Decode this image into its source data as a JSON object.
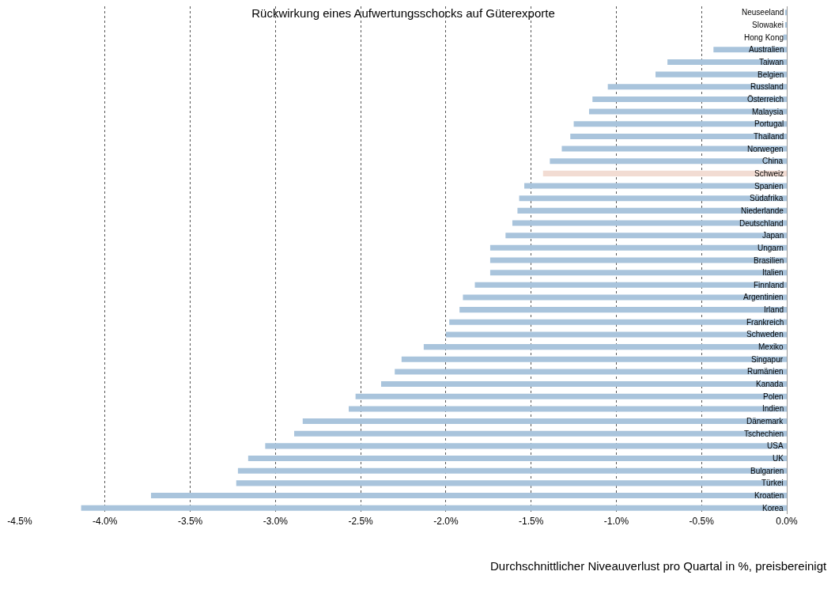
{
  "chart_data": {
    "type": "bar",
    "orientation": "horizontal",
    "title": "Rückwirkung eines Aufwertungsschocks auf Güterexporte",
    "categories": [
      "Neuseeland",
      "Slowakei",
      "Hong Kong",
      "Australien",
      "Taiwan",
      "Belgien",
      "Russland",
      "Österreich",
      "Malaysia",
      "Portugal",
      "Thailand",
      "Norwegen",
      "China",
      "Schweiz",
      "Spanien",
      "Südafrika",
      "Niederlande",
      "Deutschland",
      "Japan",
      "Ungarn",
      "Brasilien",
      "Italien",
      "Finnland",
      "Argentinien",
      "Irland",
      "Frankreich",
      "Schweden",
      "Mexiko",
      "Singapur",
      "Rumänien",
      "Kanada",
      "Polen",
      "Indien",
      "Dänemark",
      "Tschechien",
      "USA",
      "UK",
      "Bulgarien",
      "Türkei",
      "Kroatien",
      "Korea"
    ],
    "values": [
      -0.01,
      -0.01,
      -0.02,
      -0.43,
      -0.7,
      -0.77,
      -1.05,
      -1.14,
      -1.16,
      -1.25,
      -1.27,
      -1.32,
      -1.39,
      -1.43,
      -1.54,
      -1.57,
      -1.58,
      -1.61,
      -1.65,
      -1.74,
      -1.74,
      -1.74,
      -1.83,
      -1.9,
      -1.92,
      -1.98,
      -2.0,
      -2.13,
      -2.26,
      -2.3,
      -2.38,
      -2.53,
      -2.57,
      -2.84,
      -2.89,
      -3.06,
      -3.16,
      -3.22,
      -3.23,
      -3.73,
      -4.14
    ],
    "colors": [
      "#a9c4dc",
      "#a9c4dc",
      "#a9c4dc",
      "#a9c4dc",
      "#a9c4dc",
      "#a9c4dc",
      "#a9c4dc",
      "#a9c4dc",
      "#a9c4dc",
      "#a9c4dc",
      "#a9c4dc",
      "#a9c4dc",
      "#a9c4dc",
      "#f2dcd3",
      "#a9c4dc",
      "#a9c4dc",
      "#a9c4dc",
      "#a9c4dc",
      "#a9c4dc",
      "#a9c4dc",
      "#a9c4dc",
      "#a9c4dc",
      "#a9c4dc",
      "#a9c4dc",
      "#a9c4dc",
      "#a9c4dc",
      "#a9c4dc",
      "#a9c4dc",
      "#a9c4dc",
      "#a9c4dc",
      "#a9c4dc",
      "#a9c4dc",
      "#a9c4dc",
      "#a9c4dc",
      "#a9c4dc",
      "#a9c4dc",
      "#a9c4dc",
      "#a9c4dc",
      "#a9c4dc",
      "#a9c4dc",
      "#a9c4dc"
    ],
    "xlim": [
      -4.5,
      0
    ],
    "xticks": [
      {
        "value": -4.5,
        "label": "-4.5%"
      },
      {
        "value": -4,
        "label": "-4.0%"
      },
      {
        "value": -3.5,
        "label": "-3.5%"
      },
      {
        "value": -3,
        "label": "-3.0%"
      },
      {
        "value": -2.5,
        "label": "-2.5%"
      },
      {
        "value": -2,
        "label": "-2.0%"
      },
      {
        "value": -1.5,
        "label": "-1.5%"
      },
      {
        "value": -1,
        "label": "-1.0%"
      },
      {
        "value": -0.5,
        "label": "-0.5%"
      },
      {
        "value": 0,
        "label": "0.0%"
      }
    ],
    "grid": "x",
    "annotations": [
      "Durchschnittlicher Niveauverlust pro Quartal in %, preisbereinigt"
    ]
  }
}
